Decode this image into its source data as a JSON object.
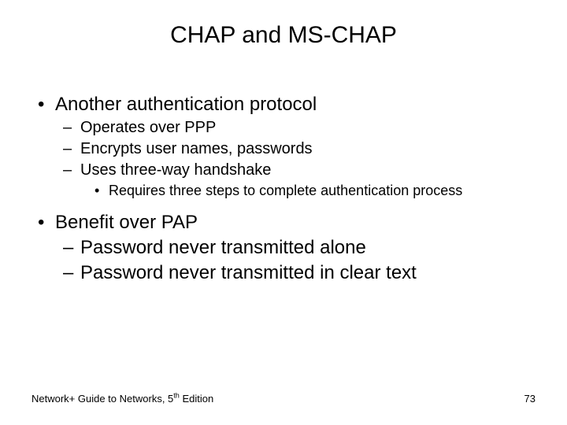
{
  "title": "CHAP and MS-CHAP",
  "b1": {
    "l1": "Another authentication protocol",
    "s1": "Operates over PPP",
    "s2": "Encrypts user names, passwords",
    "s3": "Uses three-way handshake",
    "s3a": "Requires three steps to complete authentication process"
  },
  "b2": {
    "l1": "Benefit over PAP",
    "s1": "Password never transmitted alone",
    "s2": "Password never transmitted in clear text"
  },
  "footer": {
    "book_prefix": "Network+ Guide to Networks, 5",
    "book_suffix": " Edition",
    "ordinal": "th",
    "page": "73"
  },
  "style": {
    "background": "#ffffff",
    "text_color": "#000000",
    "title_fontsize_pt": 30,
    "l1_fontsize_pt": 24,
    "l2_fontsize_pt": 20,
    "l3_fontsize_pt": 18,
    "footer_fontsize_pt": 13,
    "font_family": "Arial"
  }
}
